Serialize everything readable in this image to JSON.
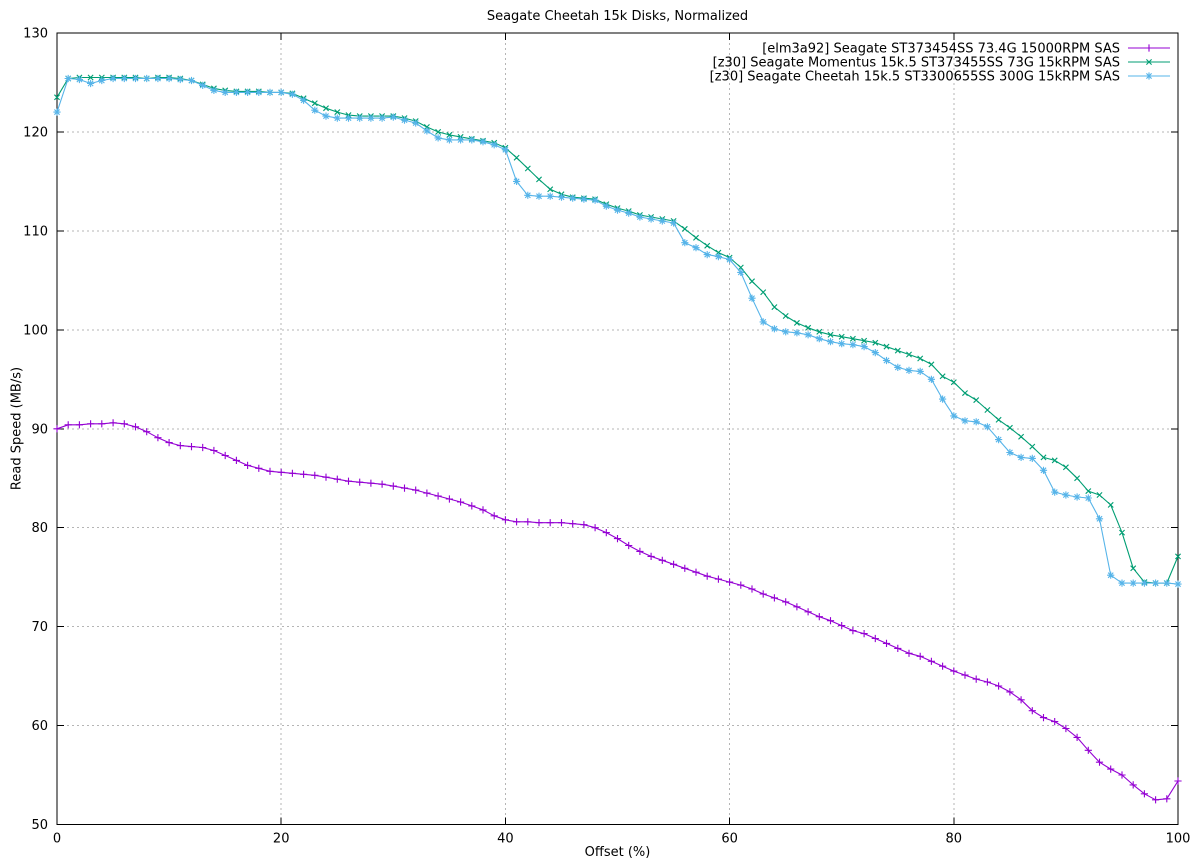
{
  "chart_data": {
    "type": "line",
    "title": "Seagate Cheetah 15k Disks, Normalized",
    "xlabel": "Offset (%)",
    "ylabel": "Read Speed (MB/s)",
    "xlim": [
      0,
      100
    ],
    "ylim": [
      50,
      130
    ],
    "xticks": [
      0,
      20,
      40,
      60,
      80,
      100
    ],
    "yticks": [
      50,
      60,
      70,
      80,
      90,
      100,
      110,
      120,
      130
    ],
    "grid": true,
    "grid_style": "dotted",
    "legend_position": "top-right-inside",
    "axis_color": "#000000",
    "grid_color": "#b5b5b5",
    "x": [
      0,
      1,
      2,
      3,
      4,
      5,
      6,
      7,
      8,
      9,
      10,
      11,
      12,
      13,
      14,
      15,
      16,
      17,
      18,
      19,
      20,
      21,
      22,
      23,
      24,
      25,
      26,
      27,
      28,
      29,
      30,
      31,
      32,
      33,
      34,
      35,
      36,
      37,
      38,
      39,
      40,
      41,
      42,
      43,
      44,
      45,
      46,
      47,
      48,
      49,
      50,
      51,
      52,
      53,
      54,
      55,
      56,
      57,
      58,
      59,
      60,
      61,
      62,
      63,
      64,
      65,
      66,
      67,
      68,
      69,
      70,
      71,
      72,
      73,
      74,
      75,
      76,
      77,
      78,
      79,
      80,
      81,
      82,
      83,
      84,
      85,
      86,
      87,
      88,
      89,
      90,
      91,
      92,
      93,
      94,
      95,
      96,
      97,
      98,
      99,
      100
    ],
    "series": [
      {
        "name": "[elm3a92] Seagate ST373454SS 73.4G 15000RPM SAS",
        "color": "#9400d3",
        "marker": "plus",
        "y": [
          90.0,
          90.4,
          90.4,
          90.5,
          90.5,
          90.6,
          90.5,
          90.2,
          89.7,
          89.1,
          88.6,
          88.3,
          88.2,
          88.1,
          87.8,
          87.3,
          86.8,
          86.3,
          86.0,
          85.7,
          85.6,
          85.5,
          85.4,
          85.3,
          85.1,
          84.9,
          84.7,
          84.6,
          84.5,
          84.4,
          84.2,
          84.0,
          83.8,
          83.5,
          83.2,
          82.9,
          82.6,
          82.2,
          81.8,
          81.2,
          80.8,
          80.6,
          80.6,
          80.5,
          80.5,
          80.5,
          80.4,
          80.3,
          80.0,
          79.5,
          78.9,
          78.2,
          77.6,
          77.1,
          76.7,
          76.3,
          75.9,
          75.5,
          75.1,
          74.8,
          74.5,
          74.2,
          73.8,
          73.3,
          72.9,
          72.5,
          72.0,
          71.5,
          71.0,
          70.6,
          70.1,
          69.6,
          69.3,
          68.8,
          68.3,
          67.8,
          67.3,
          67.0,
          66.5,
          66.0,
          65.5,
          65.1,
          64.7,
          64.4,
          64.0,
          63.4,
          62.6,
          61.5,
          60.8,
          60.4,
          59.7,
          58.8,
          57.5,
          56.3,
          55.6,
          55.0,
          54.0,
          53.1,
          52.5,
          52.6,
          54.4
        ]
      },
      {
        "name": "[z30] Seagate Momentus 15k.5 ST373455SS 73G 15kRPM SAS",
        "color": "#009e73",
        "marker": "cross",
        "y": [
          123.5,
          125.4,
          125.5,
          125.5,
          125.5,
          125.5,
          125.5,
          125.5,
          125.4,
          125.5,
          125.5,
          125.4,
          125.2,
          124.8,
          124.4,
          124.2,
          124.1,
          124.1,
          124.1,
          124.0,
          124.0,
          123.9,
          123.4,
          122.9,
          122.4,
          122.0,
          121.7,
          121.6,
          121.6,
          121.6,
          121.6,
          121.4,
          121.1,
          120.5,
          120.0,
          119.7,
          119.5,
          119.3,
          119.1,
          118.9,
          118.4,
          117.4,
          116.3,
          115.2,
          114.2,
          113.7,
          113.4,
          113.3,
          113.2,
          112.7,
          112.3,
          112.0,
          111.6,
          111.4,
          111.2,
          111.0,
          110.2,
          109.3,
          108.5,
          107.8,
          107.3,
          106.3,
          104.9,
          103.8,
          102.3,
          101.4,
          100.7,
          100.2,
          99.8,
          99.5,
          99.3,
          99.1,
          98.9,
          98.7,
          98.3,
          97.9,
          97.5,
          97.1,
          96.5,
          95.3,
          94.7,
          93.6,
          92.9,
          91.9,
          90.9,
          90.1,
          89.2,
          88.2,
          87.1,
          86.8,
          86.1,
          85.0,
          83.7,
          83.3,
          82.3,
          79.5,
          75.9,
          74.5,
          74.4,
          74.4,
          77.1
        ]
      },
      {
        "name": "[z30] Seagate Cheetah 15k.5 ST3300655SS 300G 15kRPM SAS",
        "color": "#56b4e9",
        "marker": "asterisk",
        "y": [
          122.0,
          125.4,
          125.3,
          124.9,
          125.2,
          125.4,
          125.4,
          125.4,
          125.4,
          125.4,
          125.4,
          125.3,
          125.2,
          124.7,
          124.2,
          124.0,
          124.0,
          124.0,
          124.0,
          124.0,
          124.0,
          123.8,
          123.2,
          122.2,
          121.6,
          121.4,
          121.4,
          121.4,
          121.4,
          121.4,
          121.5,
          121.2,
          120.9,
          120.1,
          119.4,
          119.2,
          119.2,
          119.2,
          119.0,
          118.7,
          118.2,
          115.0,
          113.6,
          113.5,
          113.5,
          113.4,
          113.3,
          113.2,
          113.1,
          112.5,
          112.1,
          111.8,
          111.4,
          111.2,
          111.0,
          110.8,
          108.8,
          108.3,
          107.6,
          107.4,
          107.1,
          105.8,
          103.2,
          100.8,
          100.1,
          99.8,
          99.7,
          99.5,
          99.1,
          98.8,
          98.6,
          98.5,
          98.3,
          97.7,
          96.9,
          96.2,
          95.9,
          95.8,
          95.0,
          93.0,
          91.3,
          90.8,
          90.7,
          90.2,
          88.9,
          87.6,
          87.1,
          87.0,
          85.8,
          83.6,
          83.3,
          83.1,
          83.0,
          80.9,
          75.2,
          74.4,
          74.4,
          74.4,
          74.4,
          74.4,
          74.3
        ]
      }
    ]
  }
}
